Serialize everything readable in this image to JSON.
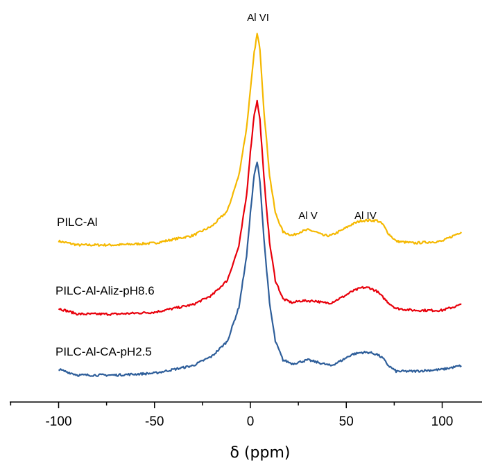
{
  "chart_data": {
    "type": "line",
    "title": "",
    "xlabel": "δ (ppm)",
    "ylabel": "",
    "xlim": [
      -125,
      125
    ],
    "x_ticks": [
      -100,
      -50,
      0,
      50,
      100
    ],
    "x_tick_labels": [
      "-100",
      "-50",
      "0",
      "50",
      "100"
    ],
    "grid": false,
    "legend": "none",
    "series": [
      {
        "name": "PILC-Al",
        "color": "#F5B800",
        "baseline": 0.0,
        "points": [
          [
            -100,
            0.0
          ],
          [
            -90,
            -0.02
          ],
          [
            -70,
            -0.02
          ],
          [
            -50,
            -0.01
          ],
          [
            -30,
            0.03
          ],
          [
            -20,
            0.08
          ],
          [
            -12,
            0.16
          ],
          [
            -6,
            0.35
          ],
          [
            -2,
            0.6
          ],
          [
            0,
            0.8
          ],
          [
            2,
            1.0
          ],
          [
            3.5,
            1.1
          ],
          [
            5,
            1.02
          ],
          [
            7,
            0.7
          ],
          [
            10,
            0.35
          ],
          [
            13,
            0.15
          ],
          [
            17,
            0.05
          ],
          [
            22,
            0.03
          ],
          [
            26,
            0.05
          ],
          [
            30,
            0.06
          ],
          [
            34,
            0.05
          ],
          [
            38,
            0.03
          ],
          [
            42,
            0.03
          ],
          [
            48,
            0.06
          ],
          [
            53,
            0.09
          ],
          [
            58,
            0.11
          ],
          [
            62,
            0.11
          ],
          [
            66,
            0.11
          ],
          [
            69,
            0.09
          ],
          [
            72,
            0.04
          ],
          [
            76,
            0.0
          ],
          [
            85,
            -0.01
          ],
          [
            100,
            0.0
          ],
          [
            110,
            0.05
          ]
        ]
      },
      {
        "name": "PILC-Al-Aliz-pH8.6",
        "color": "#E8000B",
        "baseline": 0.0,
        "points": [
          [
            -100,
            0.0
          ],
          [
            -90,
            -0.03
          ],
          [
            -70,
            -0.03
          ],
          [
            -50,
            -0.02
          ],
          [
            -30,
            0.02
          ],
          [
            -20,
            0.07
          ],
          [
            -12,
            0.15
          ],
          [
            -6,
            0.33
          ],
          [
            -2,
            0.6
          ],
          [
            0,
            0.83
          ],
          [
            2,
            1.03
          ],
          [
            3.5,
            1.1
          ],
          [
            5,
            1.0
          ],
          [
            7,
            0.7
          ],
          [
            10,
            0.35
          ],
          [
            13,
            0.15
          ],
          [
            17,
            0.05
          ],
          [
            22,
            0.03
          ],
          [
            26,
            0.04
          ],
          [
            30,
            0.04
          ],
          [
            34,
            0.04
          ],
          [
            38,
            0.03
          ],
          [
            42,
            0.03
          ],
          [
            48,
            0.06
          ],
          [
            53,
            0.09
          ],
          [
            58,
            0.11
          ],
          [
            62,
            0.11
          ],
          [
            66,
            0.09
          ],
          [
            69,
            0.06
          ],
          [
            72,
            0.03
          ],
          [
            76,
            0.0
          ],
          [
            85,
            -0.01
          ],
          [
            100,
            -0.01
          ],
          [
            110,
            0.02
          ]
        ]
      },
      {
        "name": "PILC-Al-CA-pH2.5",
        "color": "#2E5E9A",
        "baseline": 0.0,
        "points": [
          [
            -100,
            0.0
          ],
          [
            -90,
            -0.03
          ],
          [
            -70,
            -0.03
          ],
          [
            -50,
            -0.02
          ],
          [
            -30,
            0.02
          ],
          [
            -20,
            0.07
          ],
          [
            -12,
            0.15
          ],
          [
            -6,
            0.33
          ],
          [
            -2,
            0.6
          ],
          [
            0,
            0.83
          ],
          [
            2,
            1.03
          ],
          [
            3.5,
            1.1
          ],
          [
            5,
            1.0
          ],
          [
            7,
            0.7
          ],
          [
            10,
            0.35
          ],
          [
            13,
            0.15
          ],
          [
            17,
            0.05
          ],
          [
            22,
            0.03
          ],
          [
            26,
            0.04
          ],
          [
            30,
            0.05
          ],
          [
            34,
            0.04
          ],
          [
            38,
            0.03
          ],
          [
            42,
            0.02
          ],
          [
            48,
            0.05
          ],
          [
            53,
            0.08
          ],
          [
            58,
            0.09
          ],
          [
            62,
            0.09
          ],
          [
            66,
            0.08
          ],
          [
            69,
            0.06
          ],
          [
            72,
            0.02
          ],
          [
            76,
            -0.01
          ],
          [
            85,
            -0.01
          ],
          [
            100,
            0.0
          ],
          [
            110,
            0.02
          ]
        ]
      }
    ],
    "annotations": [
      {
        "text": "Al VI",
        "x": 4
      },
      {
        "text": "Al V",
        "x": 30
      },
      {
        "text": "Al IV",
        "x": 60
      }
    ]
  }
}
